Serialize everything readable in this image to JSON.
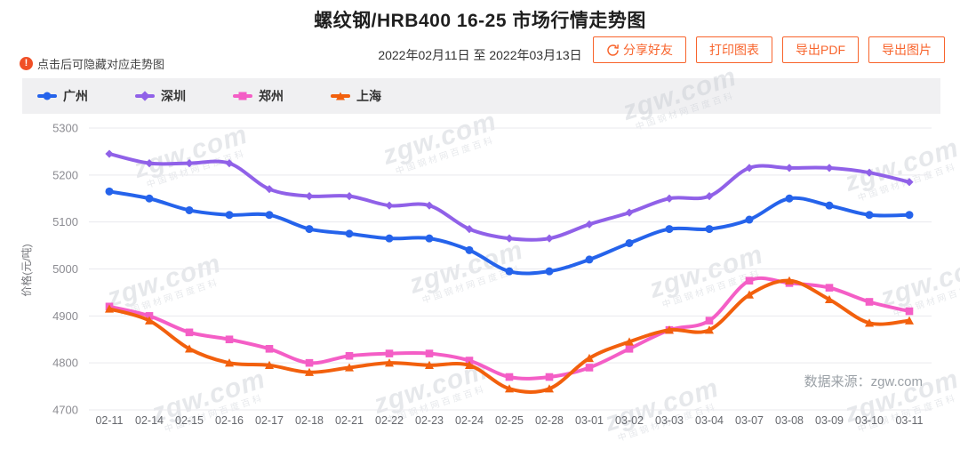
{
  "header": {
    "title": "螺纹钢/HRB400 16-25 市场行情走势图",
    "date_range": "2022年02月11日 至 2022年03月13日",
    "note": "点击后可隐藏对应走势图",
    "buttons": [
      {
        "label": "分享好友",
        "icon": "share-refresh-icon"
      },
      {
        "label": "打印图表"
      },
      {
        "label": "导出PDF"
      },
      {
        "label": "导出图片"
      }
    ],
    "accent_color": "#f8642c"
  },
  "legend": [
    {
      "label": "广州",
      "color": "#2563eb",
      "marker": "circle"
    },
    {
      "label": "深圳",
      "color": "#9061e8",
      "marker": "diamond"
    },
    {
      "label": "郑州",
      "color": "#f45ec6",
      "marker": "square"
    },
    {
      "label": "上海",
      "color": "#f2600d",
      "marker": "triangle"
    }
  ],
  "chart_data": {
    "type": "line",
    "title": "螺纹钢/HRB400 16-25 市场行情走势图",
    "xlabel": "",
    "ylabel": "价格(元/吨)",
    "ylim": [
      4700,
      5300
    ],
    "yticks": [
      4700,
      4800,
      4900,
      5000,
      5100,
      5200,
      5300
    ],
    "grid": true,
    "legend_position": "top",
    "categories": [
      "02-11",
      "02-14",
      "02-15",
      "02-16",
      "02-17",
      "02-18",
      "02-21",
      "02-22",
      "02-23",
      "02-24",
      "02-25",
      "02-28",
      "03-01",
      "03-02",
      "03-03",
      "03-04",
      "03-07",
      "03-08",
      "03-09",
      "03-10",
      "03-11"
    ],
    "series": [
      {
        "name": "广州",
        "color": "#2563eb",
        "marker": "circle",
        "values": [
          5165,
          5150,
          5125,
          5115,
          5115,
          5085,
          5075,
          5065,
          5065,
          5040,
          4995,
          4995,
          5020,
          5055,
          5085,
          5085,
          5105,
          5150,
          5135,
          5115,
          5115
        ]
      },
      {
        "name": "深圳",
        "color": "#9061e8",
        "marker": "diamond",
        "values": [
          5245,
          5225,
          5225,
          5225,
          5170,
          5155,
          5155,
          5135,
          5135,
          5085,
          5065,
          5065,
          5095,
          5120,
          5150,
          5155,
          5215,
          5215,
          5215,
          5205,
          5185
        ]
      },
      {
        "name": "郑州",
        "color": "#f45ec6",
        "marker": "square",
        "values": [
          4920,
          4900,
          4865,
          4850,
          4830,
          4800,
          4815,
          4820,
          4820,
          4805,
          4770,
          4770,
          4790,
          4830,
          4870,
          4890,
          4975,
          4970,
          4960,
          4930,
          4910
        ]
      },
      {
        "name": "上海",
        "color": "#f2600d",
        "marker": "triangle",
        "values": [
          4915,
          4890,
          4830,
          4800,
          4795,
          4780,
          4790,
          4800,
          4795,
          4795,
          4745,
          4745,
          4810,
          4845,
          4870,
          4870,
          4945,
          4975,
          4935,
          4885,
          4890
        ]
      }
    ]
  },
  "footer": {
    "source": "数据来源：zgw.com"
  },
  "watermark": {
    "main": "zgw.com",
    "sub": "中国钢材网百度百科"
  }
}
